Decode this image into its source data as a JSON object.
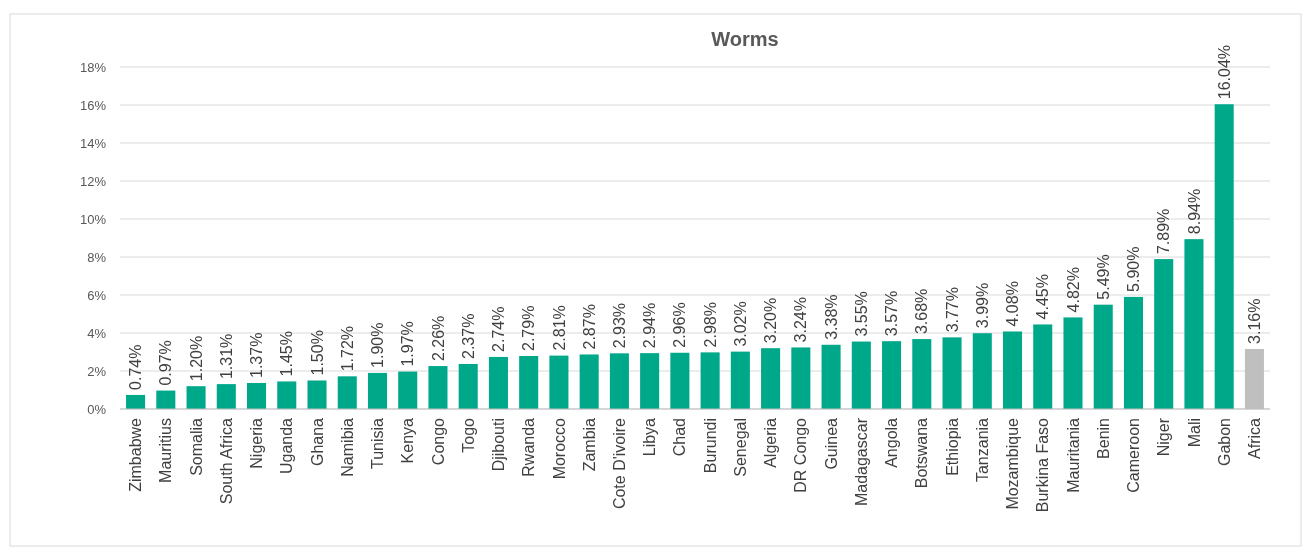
{
  "chart_data": {
    "type": "bar",
    "title": "Worms",
    "categories": [
      "Zimbabwe",
      "Mauritius",
      "Somalia",
      "South Africa",
      "Nigeria",
      "Uganda",
      "Ghana",
      "Namibia",
      "Tunisia",
      "Kenya",
      "Congo",
      "Togo",
      "Djibouti",
      "Rwanda",
      "Morocco",
      "Zambia",
      "Cote D'ivoire",
      "Libya",
      "Chad",
      "Burundi",
      "Senegal",
      "Algeria",
      "DR Congo",
      "Guinea",
      "Madagascar",
      "Angola",
      "Botswana",
      "Ethiopia",
      "Tanzania",
      "Mozambique",
      "Burkina Faso",
      "Mauritania",
      "Benin",
      "Cameroon",
      "Niger",
      "Mali",
      "Gabon",
      "Africa"
    ],
    "values": [
      0.74,
      0.97,
      1.2,
      1.31,
      1.37,
      1.45,
      1.5,
      1.72,
      1.9,
      1.97,
      2.26,
      2.37,
      2.74,
      2.79,
      2.81,
      2.87,
      2.93,
      2.94,
      2.96,
      2.98,
      3.02,
      3.2,
      3.24,
      3.38,
      3.55,
      3.57,
      3.68,
      3.77,
      3.99,
      4.08,
      4.45,
      4.82,
      5.49,
      5.9,
      7.89,
      8.94,
      16.04,
      3.16
    ],
    "value_labels": [
      "0.74%",
      "0.97%",
      "1.20%",
      "1.31%",
      "1.37%",
      "1.45%",
      "1.50%",
      "1.72%",
      "1.90%",
      "1.97%",
      "2.26%",
      "2.37%",
      "2.74%",
      "2.79%",
      "2.81%",
      "2.87%",
      "2.93%",
      "2.94%",
      "2.96%",
      "2.98%",
      "3.02%",
      "3.20%",
      "3.24%",
      "3.38%",
      "3.55%",
      "3.57%",
      "3.68%",
      "3.77%",
      "3.99%",
      "4.08%",
      "4.45%",
      "4.82%",
      "5.49%",
      "5.90%",
      "7.89%",
      "8.94%",
      "16.04%",
      "3.16%"
    ],
    "colors": [
      "#00a88a",
      "#00a88a",
      "#00a88a",
      "#00a88a",
      "#00a88a",
      "#00a88a",
      "#00a88a",
      "#00a88a",
      "#00a88a",
      "#00a88a",
      "#00a88a",
      "#00a88a",
      "#00a88a",
      "#00a88a",
      "#00a88a",
      "#00a88a",
      "#00a88a",
      "#00a88a",
      "#00a88a",
      "#00a88a",
      "#00a88a",
      "#00a88a",
      "#00a88a",
      "#00a88a",
      "#00a88a",
      "#00a88a",
      "#00a88a",
      "#00a88a",
      "#00a88a",
      "#00a88a",
      "#00a88a",
      "#00a88a",
      "#00a88a",
      "#00a88a",
      "#00a88a",
      "#00a88a",
      "#00a88a",
      "#bfbfbf"
    ],
    "ylim": [
      0,
      18
    ],
    "yticks": [
      {
        "value": 0,
        "label": "0%"
      },
      {
        "value": 2,
        "label": "2%"
      },
      {
        "value": 4,
        "label": "4%"
      },
      {
        "value": 6,
        "label": "6%"
      },
      {
        "value": 8,
        "label": "8%"
      },
      {
        "value": 10,
        "label": "10%"
      },
      {
        "value": 12,
        "label": "12%"
      },
      {
        "value": 14,
        "label": "14%"
      },
      {
        "value": 16,
        "label": "16%"
      },
      {
        "value": 18,
        "label": "18%"
      }
    ],
    "grid": true
  }
}
